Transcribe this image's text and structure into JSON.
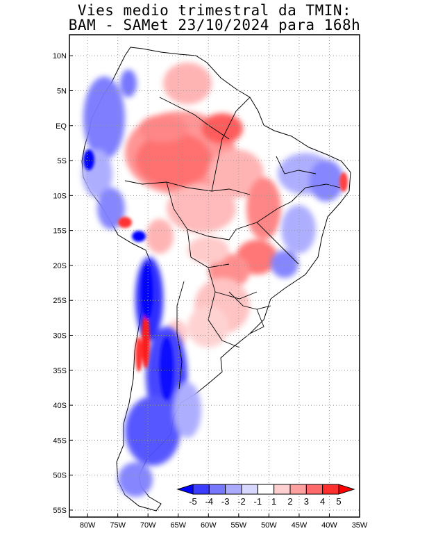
{
  "title": {
    "line1": "Vies medio trimestral da TMIN:",
    "line2": "BAM - SAMet 23/10/2024  para 168h"
  },
  "map": {
    "lat_range": [
      -56,
      13
    ],
    "lon_range": [
      -83,
      -35
    ],
    "lat_ticks": [
      "10N",
      "5N",
      "EQ",
      "5S",
      "10S",
      "15S",
      "20S",
      "25S",
      "30S",
      "35S",
      "40S",
      "45S",
      "50S",
      "55S"
    ],
    "lat_values": [
      10,
      5,
      0,
      -5,
      -10,
      -15,
      -20,
      -25,
      -30,
      -35,
      -40,
      -45,
      -50,
      -55
    ],
    "lon_ticks": [
      "80W",
      "75W",
      "70W",
      "65W",
      "60W",
      "55W",
      "50W",
      "45W",
      "40W",
      "35W"
    ],
    "lon_values": [
      -80,
      -75,
      -70,
      -65,
      -60,
      -55,
      -50,
      -45,
      -40,
      -35
    ],
    "grid": "dotted"
  },
  "colorbar": {
    "labels": [
      "-5",
      "-4",
      "-3",
      "-2",
      "-1",
      "1",
      "2",
      "3",
      "4",
      "5"
    ],
    "colors": [
      "#0000ff",
      "#3c3cff",
      "#7878ff",
      "#aaaaff",
      "#d8d8ff",
      "#ffffff",
      "#ffd0d0",
      "#ffa0a0",
      "#ff6a6a",
      "#ff3030",
      "#ff0000"
    ],
    "low_color": "#0000ff",
    "high_color": "#ff0000"
  }
}
